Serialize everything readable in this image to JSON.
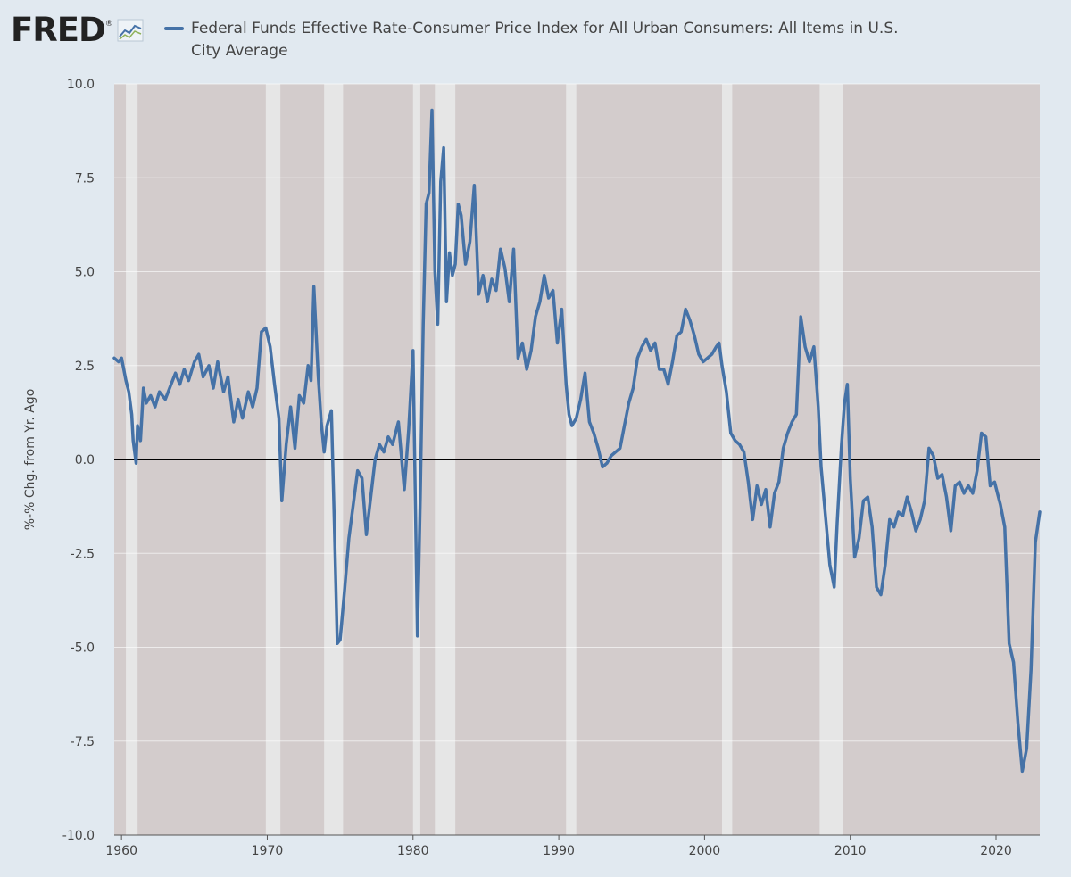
{
  "header": {
    "logo_text": "FRED",
    "logo_mark": "®",
    "logo_icon": "sparkline-icon",
    "series_title": "Federal Funds Effective Rate-Consumer Price Index for All Urban Consumers: All Items in U.S. City Average"
  },
  "chart_data": {
    "type": "line",
    "title": "Federal Funds Effective Rate-Consumer Price Index for All Urban Consumers: All Items in U.S. City Average",
    "xlabel": "",
    "ylabel": "%-% Chg. from Yr. Ago",
    "xlim": [
      1959.5,
      2023.0
    ],
    "ylim": [
      -10.0,
      10.0
    ],
    "y_ticks": [
      "10.0",
      "7.5",
      "5.0",
      "2.5",
      "0.0",
      "-2.5",
      "-5.0",
      "-7.5",
      "-10.0"
    ],
    "x_ticks": [
      "1960",
      "1970",
      "1980",
      "1990",
      "2000",
      "2010",
      "2020"
    ],
    "zero_line": true,
    "legend_position": "top",
    "colors": {
      "line": "#4572a7",
      "plot_background": "#d3cccc",
      "recession_band": "#e6e6e6",
      "page_background": "#e1e9f0",
      "zero_line": "#000000"
    },
    "recessions": [
      [
        1960.3,
        1961.1
      ],
      [
        1969.9,
        1970.9
      ],
      [
        1973.9,
        1975.2
      ],
      [
        1980.0,
        1980.5
      ],
      [
        1981.5,
        1982.9
      ],
      [
        1990.5,
        1991.2
      ],
      [
        2001.2,
        2001.9
      ],
      [
        2007.9,
        2009.5
      ]
    ],
    "series": [
      {
        "x": [
          1959.5,
          1959.8,
          1960.0,
          1960.3,
          1960.5,
          1960.7,
          1960.8,
          1961.0,
          1961.1,
          1961.3,
          1961.5,
          1961.7,
          1962.0,
          1962.3,
          1962.6,
          1963.0,
          1963.4,
          1963.7,
          1964.0,
          1964.3,
          1964.6,
          1965.0,
          1965.3,
          1965.6,
          1966.0,
          1966.3,
          1966.6,
          1967.0,
          1967.3,
          1967.7,
          1968.0,
          1968.3,
          1968.7,
          1969.0,
          1969.3,
          1969.6,
          1969.9,
          1970.2,
          1970.5,
          1970.8,
          1971.0,
          1971.3,
          1971.6,
          1971.9,
          1972.2,
          1972.5,
          1972.8,
          1973.0,
          1973.2,
          1973.5,
          1973.7,
          1973.9,
          1974.1,
          1974.4,
          1974.6,
          1974.8,
          1975.0,
          1975.3,
          1975.6,
          1975.9,
          1976.2,
          1976.5,
          1976.8,
          1977.1,
          1977.4,
          1977.7,
          1978.0,
          1978.3,
          1978.6,
          1979.0,
          1979.4,
          1979.7,
          1980.0,
          1980.3,
          1980.5,
          1980.7,
          1980.9,
          1981.1,
          1981.3,
          1981.5,
          1981.7,
          1981.9,
          1982.1,
          1982.3,
          1982.5,
          1982.7,
          1982.9,
          1983.1,
          1983.3,
          1983.6,
          1983.9,
          1984.2,
          1984.5,
          1984.8,
          1985.1,
          1985.4,
          1985.7,
          1986.0,
          1986.3,
          1986.6,
          1986.9,
          1987.2,
          1987.5,
          1987.8,
          1988.1,
          1988.4,
          1988.7,
          1989.0,
          1989.3,
          1989.6,
          1989.9,
          1990.2,
          1990.5,
          1990.7,
          1990.9,
          1991.2,
          1991.5,
          1991.8,
          1992.1,
          1992.4,
          1992.7,
          1993.0,
          1993.3,
          1993.6,
          1993.9,
          1994.2,
          1994.5,
          1994.8,
          1995.1,
          1995.4,
          1995.7,
          1996.0,
          1996.3,
          1996.6,
          1996.9,
          1997.2,
          1997.5,
          1997.8,
          1998.1,
          1998.4,
          1998.7,
          1999.0,
          1999.3,
          1999.6,
          1999.9,
          2000.2,
          2000.5,
          2000.8,
          2001.0,
          2001.2,
          2001.5,
          2001.8,
          2002.1,
          2002.4,
          2002.7,
          2003.0,
          2003.3,
          2003.6,
          2003.9,
          2004.2,
          2004.5,
          2004.8,
          2005.1,
          2005.4,
          2005.7,
          2006.0,
          2006.3,
          2006.6,
          2006.9,
          2007.2,
          2007.5,
          2007.8,
          2008.0,
          2008.3,
          2008.6,
          2008.9,
          2009.1,
          2009.4,
          2009.6,
          2009.8,
          2010.0,
          2010.3,
          2010.6,
          2010.9,
          2011.2,
          2011.5,
          2011.8,
          2012.1,
          2012.4,
          2012.7,
          2013.0,
          2013.3,
          2013.6,
          2013.9,
          2014.2,
          2014.5,
          2014.8,
          2015.1,
          2015.4,
          2015.7,
          2016.0,
          2016.3,
          2016.6,
          2016.9,
          2017.2,
          2017.5,
          2017.8,
          2018.1,
          2018.4,
          2018.7,
          2019.0,
          2019.3,
          2019.6,
          2019.9,
          2020.1,
          2020.3,
          2020.6,
          2020.9,
          2021.2,
          2021.5,
          2021.8,
          2022.1,
          2022.4,
          2022.7,
          2023.0
        ],
        "values": [
          2.7,
          2.6,
          2.7,
          2.1,
          1.8,
          1.2,
          0.5,
          -0.1,
          0.9,
          0.5,
          1.9,
          1.5,
          1.7,
          1.4,
          1.8,
          1.6,
          2.0,
          2.3,
          2.0,
          2.4,
          2.1,
          2.6,
          2.8,
          2.2,
          2.5,
          1.9,
          2.6,
          1.8,
          2.2,
          1.0,
          1.6,
          1.1,
          1.8,
          1.4,
          1.9,
          3.4,
          3.5,
          3.0,
          2.0,
          1.1,
          -1.1,
          0.4,
          1.4,
          0.3,
          1.7,
          1.5,
          2.5,
          2.1,
          4.6,
          2.2,
          1.0,
          0.2,
          0.9,
          1.3,
          -1.7,
          -4.9,
          -4.8,
          -3.5,
          -2.1,
          -1.2,
          -0.3,
          -0.5,
          -2.0,
          -1.0,
          0.0,
          0.4,
          0.2,
          0.6,
          0.4,
          1.0,
          -0.8,
          0.8,
          2.9,
          -4.7,
          -1.0,
          3.6,
          6.8,
          7.1,
          9.3,
          5.0,
          3.6,
          7.4,
          8.3,
          4.2,
          5.5,
          4.9,
          5.2,
          6.8,
          6.5,
          5.2,
          5.8,
          7.3,
          4.4,
          4.9,
          4.2,
          4.8,
          4.5,
          5.6,
          5.1,
          4.2,
          5.6,
          2.7,
          3.1,
          2.4,
          2.9,
          3.8,
          4.2,
          4.9,
          4.3,
          4.5,
          3.1,
          4.0,
          2.0,
          1.2,
          0.9,
          1.1,
          1.6,
          2.3,
          1.0,
          0.7,
          0.3,
          -0.2,
          -0.1,
          0.1,
          0.2,
          0.3,
          0.9,
          1.5,
          1.9,
          2.7,
          3.0,
          3.2,
          2.9,
          3.1,
          2.4,
          2.4,
          2.0,
          2.6,
          3.3,
          3.4,
          4.0,
          3.7,
          3.3,
          2.8,
          2.6,
          2.7,
          2.8,
          3.0,
          3.1,
          2.5,
          1.8,
          0.7,
          0.5,
          0.4,
          0.2,
          -0.6,
          -1.6,
          -0.7,
          -1.2,
          -0.8,
          -1.8,
          -0.9,
          -0.6,
          0.3,
          0.7,
          1.0,
          1.2,
          3.8,
          3.0,
          2.6,
          3.0,
          1.4,
          -0.2,
          -1.5,
          -2.8,
          -3.4,
          -1.7,
          0.4,
          1.5,
          2.0,
          -0.5,
          -2.6,
          -2.1,
          -1.1,
          -1.0,
          -1.8,
          -3.4,
          -3.6,
          -2.8,
          -1.6,
          -1.8,
          -1.4,
          -1.5,
          -1.0,
          -1.4,
          -1.9,
          -1.6,
          -1.1,
          0.3,
          0.1,
          -0.5,
          -0.4,
          -1.0,
          -1.9,
          -0.7,
          -0.6,
          -0.9,
          -0.7,
          -0.9,
          -0.3,
          0.7,
          0.6,
          -0.7,
          -0.6,
          -0.9,
          -1.2,
          -1.8,
          -4.9,
          -5.4,
          -7.0,
          -8.3,
          -7.7,
          -5.6,
          -2.2,
          -1.4
        ]
      }
    ]
  }
}
